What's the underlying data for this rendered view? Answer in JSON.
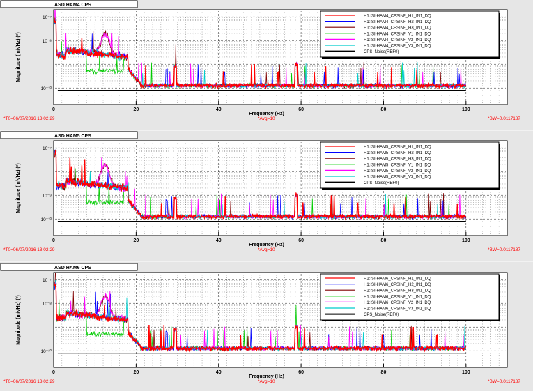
{
  "colors": {
    "background": "#e6e6e6",
    "plot_bg": "#ffffff",
    "grid": "#000000",
    "footer_text": "#ff0000",
    "series": [
      "#ff0000",
      "#0000ff",
      "#800000",
      "#00cc00",
      "#ff00ff",
      "#00cccc",
      "#000000"
    ]
  },
  "chart_data": [
    {
      "type": "line",
      "title": "ASD HAM4 CPS",
      "xlabel": "Frequency (Hz)",
      "ylabel": "Magnitude (m/√Hz) (*)",
      "xlim": [
        0,
        110
      ],
      "xticks": [
        0,
        20,
        40,
        60,
        80,
        100
      ],
      "ylim_decades": [
        -10.7,
        -6.7
      ],
      "yscale": "log",
      "yticks": [
        {
          "text": "10⁻⁷",
          "decade": -7
        },
        {
          "text": "10⁻⁸",
          "decade": -8
        },
        {
          "text": "10⁻¹⁰",
          "decade": -10
        }
      ],
      "grid": true,
      "legend_position": "top-right",
      "series": [
        {
          "name": "H1:ISI-HAM4_CPSINF_H1_IN1_DQ"
        },
        {
          "name": "H1:ISI-HAM4_CPSINF_H2_IN1_DQ"
        },
        {
          "name": "H1:ISI-HAM4_CPSINF_H3_IN1_DQ"
        },
        {
          "name": "H1:ISI-HAM4_CPSINF_V1_IN1_DQ"
        },
        {
          "name": "H1:ISI-HAM4_CPSINF_V2_IN1_DQ"
        },
        {
          "name": "H1:ISI-HAM4_CPSINF_V3_IN1_DQ"
        },
        {
          "name": "CPS_Noise(REF0)"
        }
      ],
      "footer": {
        "t0": "*T0=06/07/2016 13:02:29",
        "avg": "*Avg=10",
        "bw": "*BW=0.0117187"
      }
    },
    {
      "type": "line",
      "title": "ASD HAM5 CPS",
      "xlabel": "Frequency (Hz)",
      "ylabel": "Magnitude (m/√Hz) (*)",
      "xlim": [
        0,
        110
      ],
      "xticks": [
        0,
        20,
        40,
        60,
        80,
        100
      ],
      "ylim_decades": [
        -10.7,
        -6.7
      ],
      "yscale": "log",
      "yticks": [
        {
          "text": "10⁻⁷",
          "decade": -7
        },
        {
          "text": "10⁻⁹",
          "decade": -9
        },
        {
          "text": "10⁻¹⁰",
          "decade": -10
        }
      ],
      "grid": true,
      "legend_position": "top-right",
      "series": [
        {
          "name": "H1:ISI-HAM5_CPSINF_H1_IN1_DQ"
        },
        {
          "name": "H1:ISI-HAM5_CPSINF_H2_IN1_DQ"
        },
        {
          "name": "H1:ISI-HAM5_CPSINF_H3_IN1_DQ"
        },
        {
          "name": "H1:ISI-HAM5_CPSINF_V1_IN1_DQ"
        },
        {
          "name": "H1:ISI-HAM5_CPSINF_V2_IN1_DQ"
        },
        {
          "name": "H1:ISI-HAM5_CPSINF_V3_IN1_DQ"
        },
        {
          "name": "CPS_Noise(REF0)"
        }
      ],
      "footer": {
        "t0": "*T0=06/07/2016 13:02:29",
        "avg": "*Avg=10",
        "bw": "*BW=0.0117187"
      }
    },
    {
      "type": "line",
      "title": "ASD HAM6 CPS",
      "xlabel": "Frequency (Hz)",
      "ylabel": "Magnitude (m/√Hz) (*)",
      "xlim": [
        0,
        110
      ],
      "xticks": [
        0,
        20,
        40,
        60,
        80,
        100
      ],
      "ylim_decades": [
        -10.7,
        -6.7
      ],
      "yscale": "log",
      "yticks": [
        {
          "text": "10⁻⁷",
          "decade": -7
        },
        {
          "text": "10⁻⁸",
          "decade": -8
        },
        {
          "text": "10⁻¹⁰",
          "decade": -10
        }
      ],
      "grid": true,
      "legend_position": "top-right",
      "series": [
        {
          "name": "H1:ISI-HAM6_CPSINF_H1_IN1_DQ"
        },
        {
          "name": "H1:ISI-HAM6_CPSINF_H2_IN1_DQ"
        },
        {
          "name": "H1:ISI-HAM6_CPSINF_H3_IN1_DQ"
        },
        {
          "name": "H1:ISI-HAM6_CPSINF_V1_IN1_DQ"
        },
        {
          "name": "H1:ISI-HAM6_CPSINF_V2_IN1_DQ"
        },
        {
          "name": "H1:ISI-HAM6_CPSINF_V3_IN1_DQ"
        },
        {
          "name": "CPS_Noise(REF0)"
        }
      ],
      "footer": {
        "t0": "*T0=06/07/2016 13:02:29",
        "avg": "*Avg=10",
        "bw": "*BW=0.0117187"
      }
    }
  ]
}
